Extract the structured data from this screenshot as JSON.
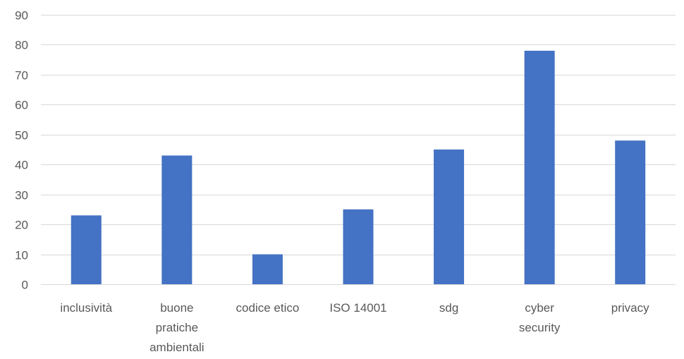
{
  "chart_data": {
    "type": "bar",
    "title": "",
    "xlabel": "",
    "ylabel": "",
    "categories": [
      [
        "inclusività"
      ],
      [
        "buone",
        "pratiche",
        "ambientali"
      ],
      [
        "codice etico"
      ],
      [
        "ISO 14001"
      ],
      [
        "sdg"
      ],
      [
        "cyber",
        "security"
      ],
      [
        "privacy"
      ]
    ],
    "values": [
      23,
      43,
      10,
      25,
      45,
      78,
      48
    ],
    "ylim": [
      0,
      90
    ],
    "yticks": [
      0,
      10,
      20,
      30,
      40,
      50,
      60,
      70,
      80,
      90
    ],
    "grid": true,
    "legend": "none",
    "bar_color": "#4472C4",
    "grid_color": "#D9D9D9",
    "text_color": "#595959"
  }
}
